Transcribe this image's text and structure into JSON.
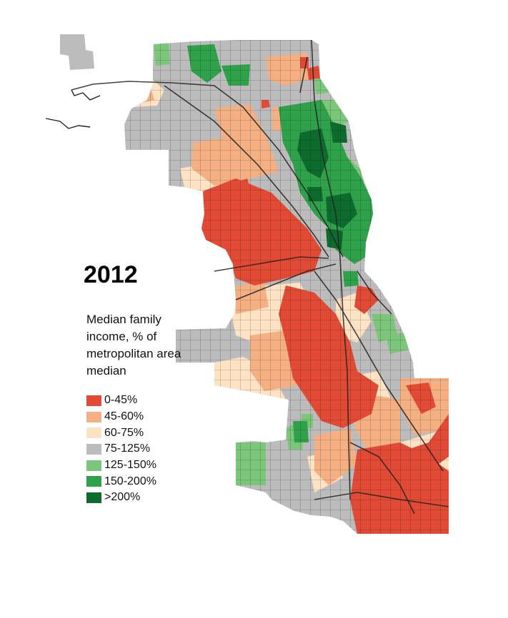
{
  "map": {
    "year": "2012",
    "legend_title": "Median family income, % of metropolitan area median",
    "legend": [
      {
        "label": "0-45%",
        "color": "#e14b36"
      },
      {
        "label": "45-60%",
        "color": "#f4b083"
      },
      {
        "label": "60-75%",
        "color": "#fde2c4"
      },
      {
        "label": "75-125%",
        "color": "#bcbcbc"
      },
      {
        "label": "125-150%",
        "color": "#7cc67c"
      },
      {
        "label": "150-200%",
        "color": "#2ea14a"
      },
      {
        "label": ">200%",
        "color": "#0e6b2e"
      }
    ]
  }
}
